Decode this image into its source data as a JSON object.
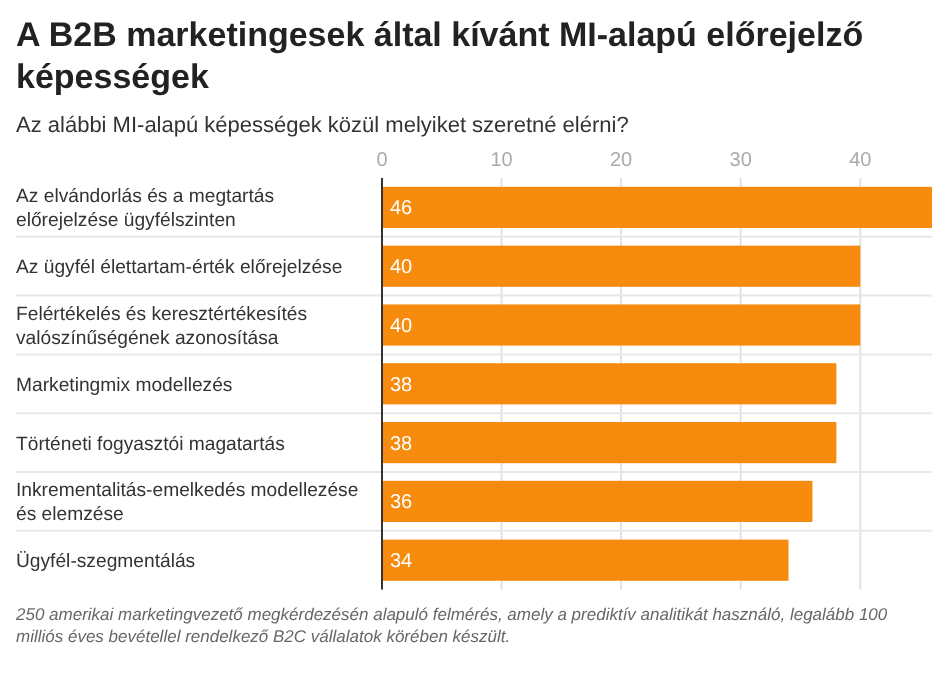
{
  "chart_data": {
    "type": "bar",
    "orientation": "horizontal",
    "title": "A B2B marketingesek által kívánt MI-alapú előrejelző képességek",
    "subtitle": "Az alábbi MI-alapú képességek közül melyiket szeretné elérni?",
    "categories": [
      "Az elvándorlás és a megtartás előrejelzése ügyfélszinten",
      "Az ügyfél élettartam-érték előrejelzése",
      "Felértékelés és keresztértékesítés valószínűségének azonosítása",
      "Marketingmix modellezés",
      "Történeti fogyasztói magatartás",
      "Inkrementalitás-emelkedés modellezése és elemzése",
      "Ügyfél-szegmentálás"
    ],
    "values": [
      46,
      40,
      40,
      38,
      38,
      36,
      34
    ],
    "color": "#f68b0d",
    "xlim": [
      0,
      46
    ],
    "xticks": [
      0,
      10,
      20,
      30,
      40
    ],
    "grid": "x",
    "data_labels": true,
    "annotations": [
      "250 amerikai marketingvezető megkérdezésén alapuló felmérés, amely a prediktív analitikát használó, legalább 100 milliós éves bevétellel rendelkező B2C vállalatok körében készült."
    ]
  }
}
